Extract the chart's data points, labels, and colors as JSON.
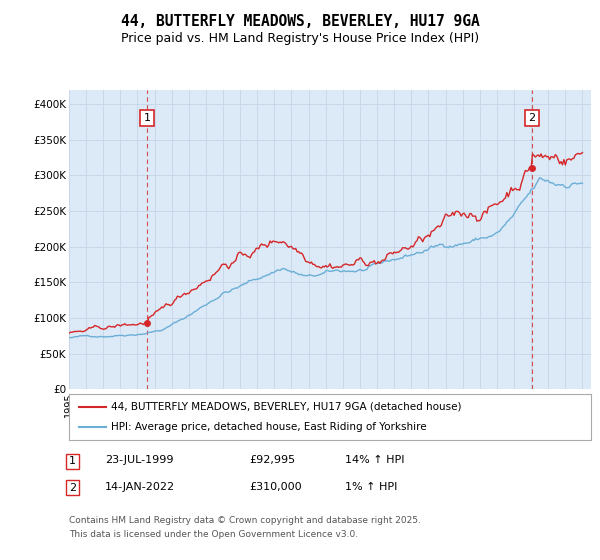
{
  "title": "44, BUTTERFLY MEADOWS, BEVERLEY, HU17 9GA",
  "subtitle": "Price paid vs. HM Land Registry's House Price Index (HPI)",
  "title_fontsize": 10.5,
  "subtitle_fontsize": 9,
  "background_color": "#ffffff",
  "plot_bg_color": "#dce9f7",
  "grid_color": "#c8d8ea",
  "ylabel_ticks": [
    "£0",
    "£50K",
    "£100K",
    "£150K",
    "£200K",
    "£250K",
    "£300K",
    "£350K",
    "£400K"
  ],
  "ytick_vals": [
    0,
    50000,
    100000,
    150000,
    200000,
    250000,
    300000,
    350000,
    400000
  ],
  "ylim": [
    0,
    420000
  ],
  "xlim_start": 1995.0,
  "xlim_end": 2025.5,
  "hpi_color": "#6baed6",
  "price_color": "#d62728",
  "marker1_x": 1999.55,
  "marker1_y": 92995,
  "marker2_x": 2022.04,
  "marker2_y": 310000,
  "legend1_label": "44, BUTTERFLY MEADOWS, BEVERLEY, HU17 9GA (detached house)",
  "legend2_label": "HPI: Average price, detached house, East Riding of Yorkshire",
  "footer3": "Contains HM Land Registry data © Crown copyright and database right 2025.",
  "footer4": "This data is licensed under the Open Government Licence v3.0."
}
